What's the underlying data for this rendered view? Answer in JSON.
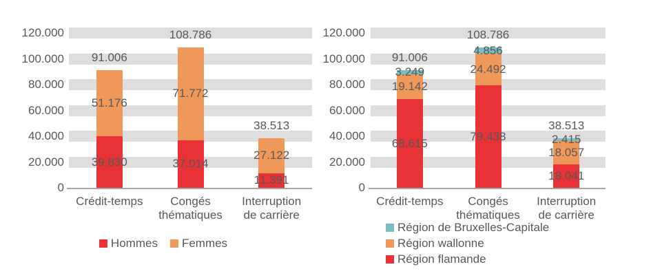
{
  "colors": {
    "band": "#DEDEDE",
    "axis_line": "#A6A6A6",
    "text": "#595959",
    "red": "#E93235",
    "orange": "#F0975A",
    "teal": "#7ABEC0"
  },
  "chart_data": [
    {
      "type": "bar",
      "stacked": true,
      "orientation": "vertical",
      "title": "",
      "categories": [
        "Crédit-temps",
        "Congés thématiques",
        "Interruption de carrière"
      ],
      "category_lines": [
        [
          "Crédit-temps"
        ],
        [
          "Congés",
          "thématiques"
        ],
        [
          "Interruption",
          "de carrière"
        ]
      ],
      "series": [
        {
          "name": "Hommes",
          "color": "#E93235",
          "values": [
            39830,
            37014,
            11391
          ],
          "value_labels": [
            "39.830",
            "37.014",
            "11.391"
          ]
        },
        {
          "name": "Femmes",
          "color": "#F0975A",
          "values": [
            51176,
            71772,
            27122
          ],
          "value_labels": [
            "51.176",
            "71.772",
            "27.122"
          ]
        }
      ],
      "totals": [
        91006,
        108786,
        38513
      ],
      "total_labels": [
        "91.006",
        "108.786",
        "38.513"
      ],
      "ylim": [
        0,
        120000
      ],
      "ytick_step": 20000,
      "ytick_labels": [
        "0",
        "20.000",
        "40.000",
        "60.000",
        "80.000",
        "100.000",
        "120.000"
      ],
      "grid": "horizontal-gray-bands",
      "legend": {
        "position": "bottom-center",
        "orientation": "horizontal",
        "items": [
          "Hommes",
          "Femmes"
        ]
      }
    },
    {
      "type": "bar",
      "stacked": true,
      "orientation": "vertical",
      "title": "",
      "categories": [
        "Crédit-temps",
        "Congés thématiques",
        "Interruption de carrière"
      ],
      "category_lines": [
        [
          "Crédit-temps"
        ],
        [
          "Congés",
          "thématiques"
        ],
        [
          "Interruption",
          "de carrière"
        ]
      ],
      "series": [
        {
          "name": "Région flamande",
          "color": "#E93235",
          "values": [
            68615,
            79438,
            18041
          ],
          "value_labels": [
            "68.615",
            "79.438",
            "18.041"
          ]
        },
        {
          "name": "Région wallonne",
          "color": "#F0975A",
          "values": [
            19142,
            24492,
            18057
          ],
          "value_labels": [
            "19.142",
            "24.492",
            "18.057"
          ]
        },
        {
          "name": "Région de Bruxelles-Capitale",
          "color": "#7ABEC0",
          "values": [
            3249,
            4856,
            2415
          ],
          "value_labels": [
            "3.249",
            "4.856",
            "2.415"
          ]
        }
      ],
      "totals": [
        91006,
        108786,
        38513
      ],
      "total_labels": [
        "91.006",
        "108.786",
        "38.513"
      ],
      "ylim": [
        0,
        120000
      ],
      "ytick_step": 20000,
      "ytick_labels": [
        "0",
        "20.000",
        "40.000",
        "60.000",
        "80.000",
        "100.000",
        "120.000"
      ],
      "grid": "horizontal-gray-bands",
      "legend": {
        "position": "bottom-left",
        "orientation": "vertical",
        "items": [
          "Région de Bruxelles-Capitale",
          "Région wallonne",
          "Région flamande"
        ]
      }
    }
  ]
}
